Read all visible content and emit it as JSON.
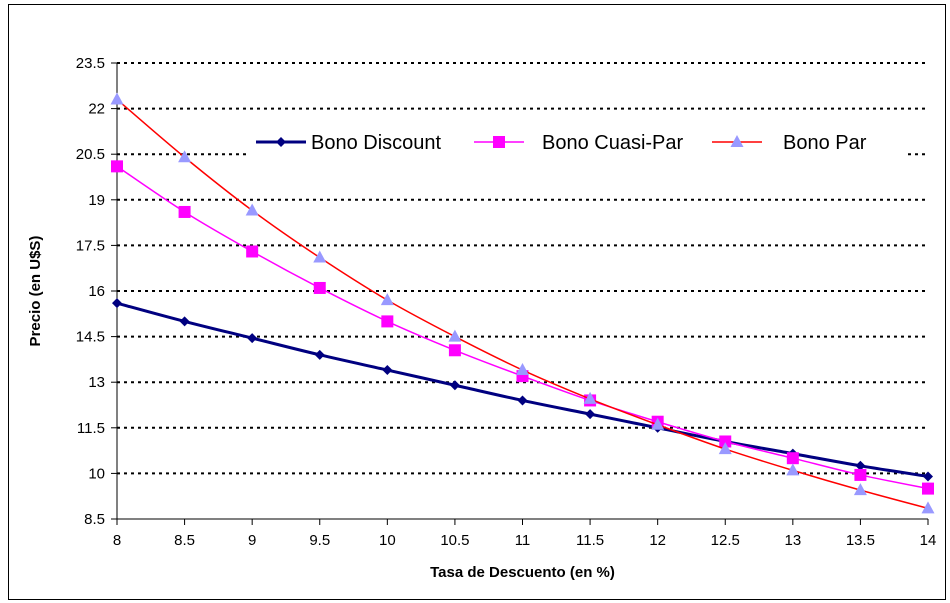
{
  "chart_data": {
    "type": "line",
    "title": "",
    "xlabel": "Tasa de Descuento (en %)",
    "ylabel": "Precio (en U$S)",
    "x": [
      8,
      8.5,
      9,
      9.5,
      10,
      10.5,
      11,
      11.5,
      12,
      12.5,
      13,
      13.5,
      14
    ],
    "xlim": [
      8,
      14
    ],
    "ylim": [
      8.5,
      23.5
    ],
    "x_ticks": [
      "8",
      "8.5",
      "9",
      "9.5",
      "10",
      "10.5",
      "11",
      "11.5",
      "12",
      "12.5",
      "13",
      "13.5",
      "14"
    ],
    "y_ticks": [
      "8.5",
      "10",
      "11.5",
      "13",
      "14.5",
      "16",
      "17.5",
      "19",
      "20.5",
      "22",
      "23.5"
    ],
    "grid": "horizontal dotted",
    "legend_position": "top-right",
    "series": [
      {
        "name": "Bono Discount",
        "color": "#000080",
        "marker": "diamond",
        "values": [
          15.6,
          15.0,
          14.45,
          13.9,
          13.4,
          12.9,
          12.4,
          11.95,
          11.5,
          11.05,
          10.65,
          10.25,
          9.9
        ]
      },
      {
        "name": "Bono Cuasi-Par",
        "color": "#ff00ff",
        "marker": "square",
        "values": [
          20.1,
          18.6,
          17.3,
          16.1,
          15.0,
          14.05,
          13.2,
          12.4,
          11.7,
          11.05,
          10.5,
          9.95,
          9.5
        ]
      },
      {
        "name": "Bono Par",
        "color": "#ff0000",
        "marker_color": "#9999ff",
        "marker": "triangle",
        "values": [
          22.3,
          20.4,
          18.65,
          17.1,
          15.7,
          14.5,
          13.4,
          12.45,
          11.6,
          10.8,
          10.1,
          9.45,
          8.85
        ]
      }
    ]
  }
}
